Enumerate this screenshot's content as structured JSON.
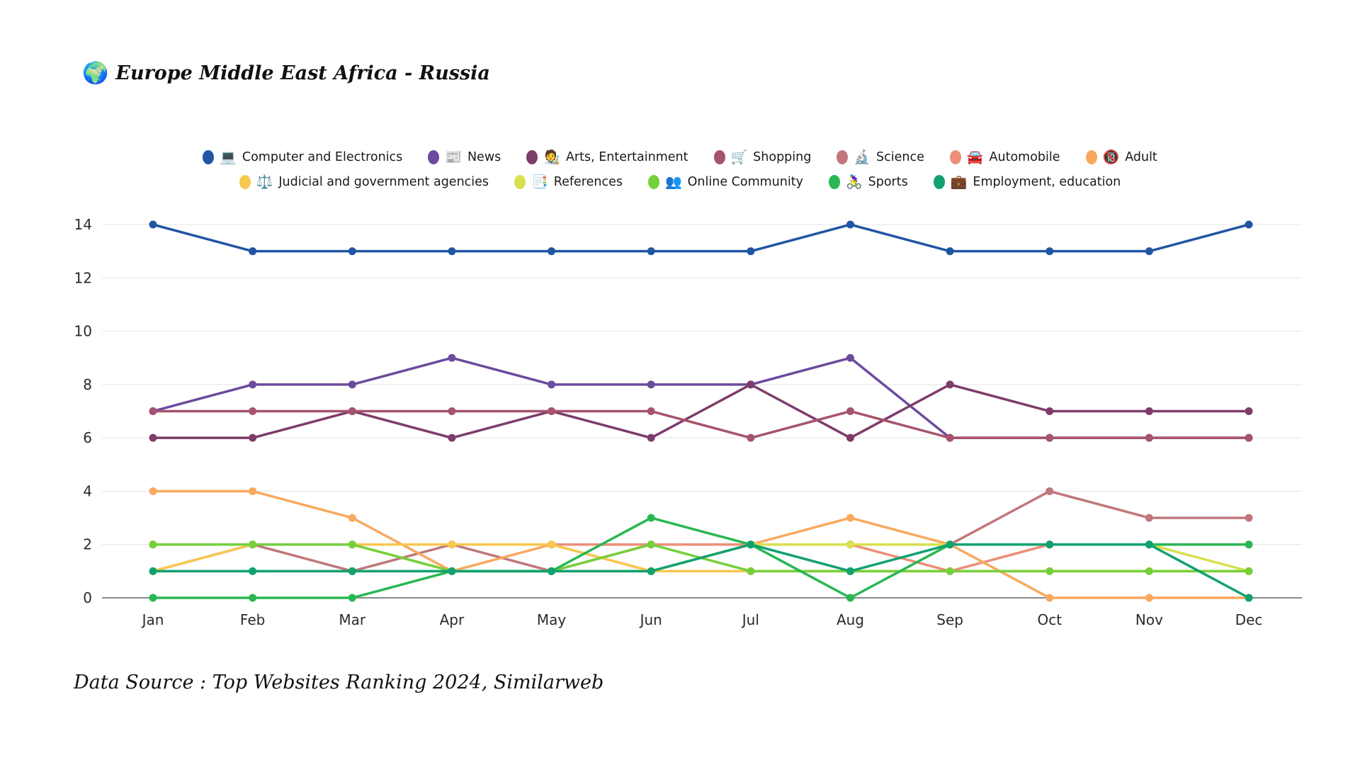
{
  "header": {
    "icon": "🌍",
    "title": "Europe Middle East Africa - Russia"
  },
  "footer": {
    "text": "Data Source : Top Websites Ranking 2024, Similarweb"
  },
  "chart_data": {
    "type": "line",
    "title": "Europe Middle East Africa - Russia",
    "categories": [
      "Jan",
      "Feb",
      "Mar",
      "Apr",
      "May",
      "Jun",
      "Jul",
      "Aug",
      "Sep",
      "Oct",
      "Nov",
      "Dec"
    ],
    "yticks": [
      0,
      2,
      4,
      6,
      8,
      10,
      12,
      14
    ],
    "ylim": [
      0,
      14
    ],
    "grid": true,
    "legend_position": "top",
    "axis_color": "#8a8a8a",
    "grid_color": "#e4e4e4",
    "tick_label_color": "#2b2b2b",
    "series": [
      {
        "name": "Computer and Electronics",
        "emoji": "💻",
        "color": "#2155a4",
        "values": [
          14,
          13,
          13,
          13,
          13,
          13,
          13,
          14,
          13,
          13,
          13,
          14
        ]
      },
      {
        "name": "News",
        "emoji": "📰",
        "color": "#6b4b9e",
        "values": [
          7,
          8,
          8,
          9,
          8,
          8,
          8,
          9,
          6,
          6,
          6,
          6
        ]
      },
      {
        "name": "Arts, Entertainment",
        "emoji": "🧑‍🎨",
        "color": "#7d3c69",
        "values": [
          6,
          6,
          7,
          6,
          7,
          6,
          8,
          6,
          8,
          7,
          7,
          7
        ]
      },
      {
        "name": "Shopping",
        "emoji": "🛒",
        "color": "#a6536d",
        "values": [
          7,
          7,
          7,
          7,
          7,
          7,
          6,
          7,
          6,
          6,
          6,
          6
        ]
      },
      {
        "name": "Science",
        "emoji": "🔬",
        "color": "#c0777b",
        "values": [
          1,
          2,
          1,
          2,
          1,
          2,
          2,
          2,
          2,
          4,
          3,
          3
        ]
      },
      {
        "name": "Automobile",
        "emoji": "🚘",
        "color": "#ec8f78",
        "values": [
          2,
          2,
          2,
          2,
          2,
          2,
          2,
          2,
          1,
          2,
          2,
          2
        ]
      },
      {
        "name": "Adult",
        "emoji": "🔞",
        "color": "#f9a95f",
        "values": [
          4,
          4,
          3,
          1,
          2,
          1,
          2,
          3,
          2,
          0,
          0,
          0
        ]
      },
      {
        "name": "Judicial and government agencies",
        "emoji": "⚖️",
        "color": "#f8c750",
        "values": [
          1,
          2,
          2,
          2,
          2,
          1,
          1,
          1,
          1,
          1,
          1,
          1
        ]
      },
      {
        "name": "References",
        "emoji": "📑",
        "color": "#d7e04d",
        "values": [
          2,
          2,
          2,
          1,
          1,
          1,
          2,
          2,
          2,
          2,
          2,
          1
        ]
      },
      {
        "name": "Online Community",
        "emoji": "👥",
        "color": "#76d03c",
        "values": [
          2,
          2,
          2,
          1,
          1,
          2,
          1,
          1,
          1,
          1,
          1,
          1
        ]
      },
      {
        "name": "Sports",
        "emoji": "🚴‍♀️",
        "color": "#29b753",
        "values": [
          0,
          0,
          0,
          1,
          1,
          3,
          2,
          0,
          2,
          2,
          2,
          2
        ]
      },
      {
        "name": "Employment, education",
        "emoji": "💼",
        "color": "#12a170",
        "values": [
          1,
          1,
          1,
          1,
          1,
          1,
          2,
          1,
          2,
          2,
          2,
          0
        ]
      }
    ]
  }
}
